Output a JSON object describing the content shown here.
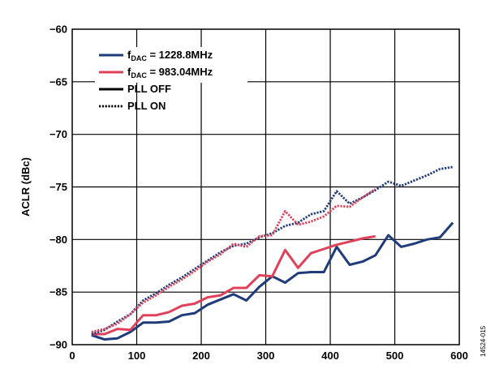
{
  "chart_data": {
    "type": "line",
    "title": "",
    "xlabel": "",
    "ylabel": "ACLR (dBc)",
    "xlim": [
      0,
      600
    ],
    "ylim": [
      -90,
      -60
    ],
    "xticks": [
      0,
      100,
      200,
      300,
      400,
      500,
      600
    ],
    "yticks": [
      -90,
      -85,
      -80,
      -75,
      -70,
      -65,
      -60
    ],
    "xtick_labels": [
      "0",
      "100",
      "200",
      "300",
      "400",
      "500",
      "600"
    ],
    "ytick_labels": [
      "−90",
      "−85",
      "−80",
      "−75",
      "−70",
      "−65",
      "−60"
    ],
    "grid": true,
    "legend_position": "top-left",
    "figure_id": "14524-015",
    "legend": {
      "entries": [
        {
          "key": "dac1",
          "main": "f",
          "sub": "DAC",
          "rest": " = 1228.8MHz",
          "color": "#1f3b7a",
          "dash": "solid"
        },
        {
          "key": "dac2",
          "main": "f",
          "sub": "DAC",
          "rest": " = 983.04MHz",
          "color": "#e0415a",
          "dash": "solid"
        },
        {
          "key": "off",
          "main": "PLL OFF",
          "sub": "",
          "rest": "",
          "color": "#000000",
          "dash": "solid"
        },
        {
          "key": "on",
          "main": "PLL ON",
          "sub": "",
          "rest": "",
          "color": "#000000",
          "dash": "dotted"
        }
      ]
    },
    "series": [
      {
        "name": "fDAC = 1228.8MHz, PLL OFF",
        "color": "#1f3b7a",
        "dash": "solid",
        "x": [
          30,
          50,
          70,
          90,
          110,
          130,
          150,
          170,
          190,
          210,
          230,
          250,
          270,
          290,
          310,
          330,
          350,
          370,
          390,
          410,
          430,
          450,
          470,
          490,
          510,
          530,
          550,
          570,
          590
        ],
        "y": [
          -89.1,
          -89.5,
          -89.4,
          -88.8,
          -87.9,
          -87.9,
          -87.8,
          -87.2,
          -87.0,
          -86.2,
          -85.7,
          -85.2,
          -85.8,
          -84.5,
          -83.5,
          -84.1,
          -83.2,
          -83.1,
          -83.1,
          -80.7,
          -82.4,
          -82.1,
          -81.5,
          -79.6,
          -80.7,
          -80.4,
          -80.0,
          -79.8,
          -78.4
        ]
      },
      {
        "name": "fDAC = 983.04MHz, PLL OFF",
        "color": "#e0415a",
        "dash": "solid",
        "x": [
          30,
          50,
          70,
          90,
          110,
          130,
          150,
          170,
          190,
          210,
          230,
          250,
          270,
          290,
          310,
          330,
          350,
          370,
          390,
          410,
          430,
          450,
          470
        ],
        "y": [
          -89.0,
          -89.0,
          -88.5,
          -88.6,
          -87.2,
          -87.2,
          -86.9,
          -86.3,
          -86.1,
          -85.5,
          -85.3,
          -84.6,
          -84.6,
          -83.4,
          -83.5,
          -81.0,
          -82.7,
          -81.3,
          -80.9,
          -80.5,
          -80.2,
          -79.9,
          -79.7
        ]
      },
      {
        "name": "fDAC = 1228.8MHz, PLL ON",
        "color": "#1f3b7a",
        "dash": "dotted",
        "x": [
          30,
          50,
          70,
          90,
          110,
          130,
          150,
          170,
          190,
          210,
          230,
          250,
          270,
          290,
          310,
          330,
          350,
          370,
          390,
          410,
          430,
          450,
          470,
          490,
          510,
          530,
          550,
          570,
          590
        ],
        "y": [
          -89.0,
          -88.6,
          -87.8,
          -87.1,
          -85.8,
          -85.1,
          -84.3,
          -83.6,
          -82.8,
          -82.0,
          -81.2,
          -80.6,
          -80.4,
          -79.8,
          -79.4,
          -78.7,
          -78.4,
          -77.6,
          -77.3,
          -75.4,
          -76.6,
          -76.0,
          -75.3,
          -74.5,
          -74.9,
          -74.4,
          -73.9,
          -73.3,
          -73.1
        ]
      },
      {
        "name": "fDAC = 983.04MHz, PLL ON",
        "color": "#e0415a",
        "dash": "dotted",
        "x": [
          30,
          50,
          70,
          90,
          110,
          130,
          150,
          170,
          190,
          210,
          230,
          250,
          270,
          290,
          310,
          330,
          350,
          370,
          390,
          410,
          430,
          450,
          470
        ],
        "y": [
          -88.8,
          -88.5,
          -88.0,
          -87.1,
          -86.0,
          -85.3,
          -84.5,
          -83.8,
          -83.0,
          -82.1,
          -81.4,
          -80.4,
          -80.7,
          -79.7,
          -79.6,
          -77.3,
          -78.6,
          -78.3,
          -77.8,
          -76.8,
          -76.9,
          -76.0,
          -75.2
        ]
      }
    ]
  }
}
